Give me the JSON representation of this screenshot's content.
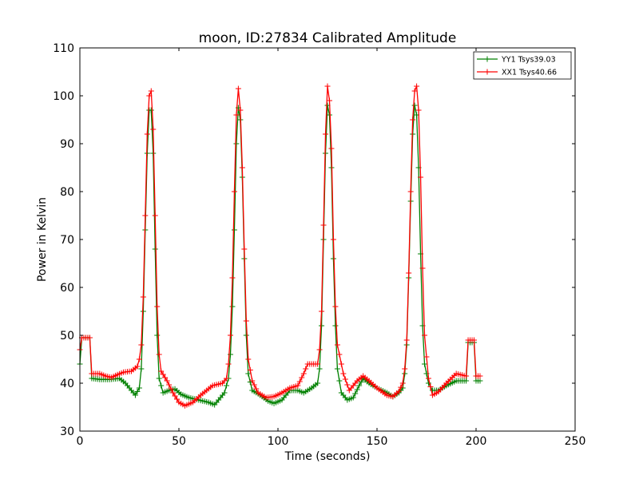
{
  "chart_data": {
    "type": "line",
    "title": "moon, ID:27834 Calibrated Amplitude",
    "xlabel": "Time (seconds)",
    "ylabel": "Power in Kelvin",
    "xlim": [
      0,
      250
    ],
    "ylim": [
      30,
      110
    ],
    "xticks": [
      0,
      50,
      100,
      150,
      200,
      250
    ],
    "yticks": [
      30,
      40,
      50,
      60,
      70,
      80,
      90,
      100,
      110
    ],
    "grid": false,
    "legend_position": "top-right",
    "marker": "+",
    "sample_step_seconds": 1,
    "series": [
      {
        "name": "YY1 Tsys39.03",
        "color": "#008000",
        "points": [
          [
            0,
            44
          ],
          [
            1,
            49.5
          ],
          [
            5,
            49.5
          ],
          [
            6,
            41
          ],
          [
            10,
            40.8
          ],
          [
            15,
            40.8
          ],
          [
            20,
            41
          ],
          [
            23,
            40
          ],
          [
            26,
            38.5
          ],
          [
            28,
            37.5
          ],
          [
            30,
            39
          ],
          [
            31,
            43
          ],
          [
            32,
            55
          ],
          [
            33,
            72
          ],
          [
            34,
            88
          ],
          [
            35,
            97
          ],
          [
            36,
            97
          ],
          [
            37,
            88
          ],
          [
            38,
            68
          ],
          [
            39,
            50
          ],
          [
            40,
            41
          ],
          [
            42,
            38
          ],
          [
            45,
            38.5
          ],
          [
            48,
            38.8
          ],
          [
            51,
            37.7
          ],
          [
            55,
            37
          ],
          [
            60,
            36.5
          ],
          [
            65,
            36
          ],
          [
            68,
            35.5
          ],
          [
            70,
            36.5
          ],
          [
            73,
            38
          ],
          [
            75,
            41
          ],
          [
            76,
            46
          ],
          [
            77,
            56
          ],
          [
            78,
            72
          ],
          [
            79,
            90
          ],
          [
            80,
            97.5
          ],
          [
            81,
            95
          ],
          [
            82,
            83
          ],
          [
            83,
            66
          ],
          [
            84,
            50
          ],
          [
            85,
            42
          ],
          [
            87,
            38.5
          ],
          [
            90,
            37.8
          ],
          [
            95,
            36.3
          ],
          [
            98,
            35.8
          ],
          [
            102,
            36.5
          ],
          [
            106,
            38.5
          ],
          [
            110,
            38.5
          ],
          [
            113,
            38
          ],
          [
            117,
            39
          ],
          [
            120,
            40
          ],
          [
            121,
            43
          ],
          [
            122,
            52
          ],
          [
            123,
            70
          ],
          [
            124,
            88
          ],
          [
            125,
            98
          ],
          [
            126,
            96
          ],
          [
            127,
            85
          ],
          [
            128,
            66
          ],
          [
            129,
            52
          ],
          [
            130,
            43
          ],
          [
            132,
            38
          ],
          [
            135,
            36.5
          ],
          [
            138,
            37
          ],
          [
            141,
            39.5
          ],
          [
            143,
            41
          ],
          [
            146,
            40
          ],
          [
            150,
            39
          ],
          [
            155,
            38
          ],
          [
            158,
            37.2
          ],
          [
            161,
            38
          ],
          [
            163,
            39
          ],
          [
            164,
            42
          ],
          [
            165,
            48
          ],
          [
            166,
            62
          ],
          [
            167,
            78
          ],
          [
            168,
            92
          ],
          [
            169,
            98
          ],
          [
            170,
            96
          ],
          [
            171,
            85
          ],
          [
            172,
            67
          ],
          [
            173,
            52
          ],
          [
            174,
            44
          ],
          [
            176,
            40
          ],
          [
            178,
            38.5
          ],
          [
            181,
            38.5
          ],
          [
            185,
            39.5
          ],
          [
            190,
            40.5
          ],
          [
            195,
            40.5
          ],
          [
            196,
            48.5
          ],
          [
            199,
            48.5
          ],
          [
            200,
            40.5
          ],
          [
            202,
            40.5
          ]
        ]
      },
      {
        "name": "XX1 Tsys40.66",
        "color": "#ff0000",
        "points": [
          [
            0,
            47
          ],
          [
            1,
            49.5
          ],
          [
            5,
            49.5
          ],
          [
            6,
            42
          ],
          [
            10,
            42
          ],
          [
            13,
            41.5
          ],
          [
            16,
            41.2
          ],
          [
            19,
            41.8
          ],
          [
            22,
            42.3
          ],
          [
            26,
            42.5
          ],
          [
            29,
            43.5
          ],
          [
            30,
            45
          ],
          [
            31,
            48
          ],
          [
            32,
            58
          ],
          [
            33,
            75
          ],
          [
            34,
            92
          ],
          [
            35,
            100
          ],
          [
            36,
            101
          ],
          [
            37,
            93
          ],
          [
            38,
            75
          ],
          [
            39,
            56
          ],
          [
            40,
            46
          ],
          [
            41,
            42.5
          ],
          [
            44,
            40.5
          ],
          [
            47,
            38
          ],
          [
            50,
            36
          ],
          [
            53,
            35.3
          ],
          [
            57,
            36
          ],
          [
            61,
            37.5
          ],
          [
            64,
            38.5
          ],
          [
            67,
            39.5
          ],
          [
            72,
            40
          ],
          [
            74,
            41
          ],
          [
            75,
            44
          ],
          [
            76,
            50
          ],
          [
            77,
            62
          ],
          [
            78,
            80
          ],
          [
            79,
            96
          ],
          [
            80,
            101.5
          ],
          [
            81,
            97
          ],
          [
            82,
            85
          ],
          [
            83,
            68
          ],
          [
            84,
            53
          ],
          [
            85,
            45
          ],
          [
            87,
            40.5
          ],
          [
            90,
            38
          ],
          [
            94,
            37
          ],
          [
            98,
            37.2
          ],
          [
            102,
            38
          ],
          [
            106,
            39
          ],
          [
            110,
            39.5
          ],
          [
            113,
            42
          ],
          [
            115,
            44
          ],
          [
            118,
            44
          ],
          [
            120,
            44
          ],
          [
            121,
            47
          ],
          [
            122,
            55
          ],
          [
            123,
            73
          ],
          [
            124,
            92
          ],
          [
            125,
            102
          ],
          [
            126,
            99
          ],
          [
            127,
            89
          ],
          [
            128,
            70
          ],
          [
            129,
            56
          ],
          [
            130,
            48
          ],
          [
            133,
            42
          ],
          [
            136,
            38.5
          ],
          [
            140,
            40.5
          ],
          [
            143,
            41.5
          ],
          [
            146,
            40.5
          ],
          [
            150,
            39
          ],
          [
            155,
            37.5
          ],
          [
            158,
            37.2
          ],
          [
            161,
            38.3
          ],
          [
            163,
            40
          ],
          [
            164,
            43
          ],
          [
            165,
            49
          ],
          [
            166,
            63
          ],
          [
            167,
            80
          ],
          [
            168,
            95
          ],
          [
            169,
            101
          ],
          [
            170,
            102
          ],
          [
            171,
            97
          ],
          [
            172,
            83
          ],
          [
            173,
            64
          ],
          [
            174,
            50
          ],
          [
            176,
            41
          ],
          [
            178,
            37.5
          ],
          [
            181,
            38.2
          ],
          [
            185,
            40
          ],
          [
            190,
            42
          ],
          [
            195,
            41.5
          ],
          [
            196,
            49
          ],
          [
            199,
            49
          ],
          [
            200,
            41.5
          ],
          [
            202,
            41.5
          ]
        ]
      }
    ]
  }
}
